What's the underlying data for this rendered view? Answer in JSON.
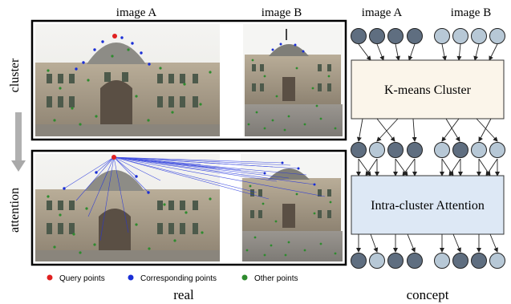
{
  "labels": {
    "image_a_left": "image A",
    "image_b_left": "image B",
    "row_cluster": "cluster",
    "row_attention": "attention",
    "image_a_right": "image A",
    "image_b_right": "image B",
    "kmeans_box": "K-means Cluster",
    "attention_box": "Intra-cluster Attention",
    "caption_real": "real",
    "caption_concept": "concept"
  },
  "legend": [
    {
      "label": "Query points",
      "color": "#e02020"
    },
    {
      "label": "Corresponding points",
      "color": "#1a2fd6"
    },
    {
      "label": "Other points",
      "color": "#2e8b2e"
    }
  ],
  "colors": {
    "node_dark": "#5f6e80",
    "node_light": "#b7c8d6",
    "kmeans_fill": "#fbf5ea",
    "attention_fill": "#dde8f5",
    "arrow_gray": "#a9a9a9"
  }
}
